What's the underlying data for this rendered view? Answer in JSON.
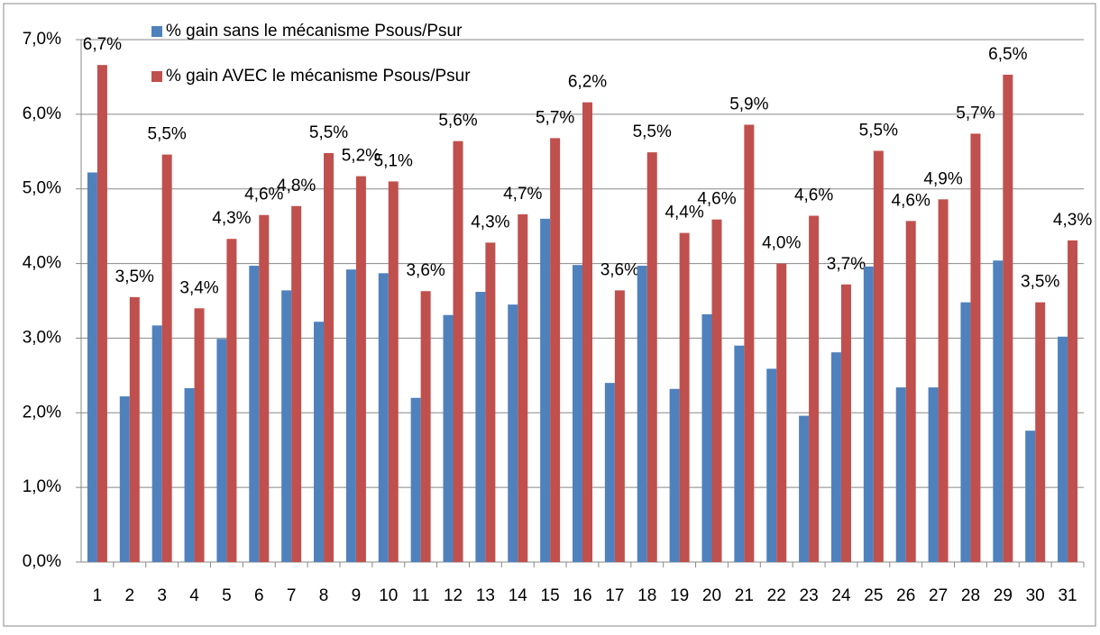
{
  "chart_data": {
    "type": "bar",
    "categories": [
      "1",
      "2",
      "3",
      "4",
      "5",
      "6",
      "7",
      "8",
      "9",
      "10",
      "11",
      "12",
      "13",
      "14",
      "15",
      "16",
      "17",
      "18",
      "19",
      "20",
      "21",
      "22",
      "23",
      "24",
      "25",
      "26",
      "27",
      "28",
      "29",
      "30",
      "31"
    ],
    "series": [
      {
        "name": "% gain sans le mécanisme Psous/Psur",
        "color": "#4f81bd",
        "values": [
          5.22,
          2.22,
          3.17,
          2.33,
          2.99,
          3.97,
          3.64,
          3.22,
          3.92,
          3.87,
          2.2,
          3.31,
          3.62,
          3.45,
          4.6,
          3.98,
          2.4,
          3.97,
          2.32,
          3.32,
          2.9,
          2.59,
          1.96,
          2.81,
          3.96,
          2.34,
          2.34,
          3.48,
          4.04,
          1.76,
          3.02
        ]
      },
      {
        "name": "% gain AVEC le mécanisme Psous/Psur",
        "color": "#c0504d",
        "values": [
          6.66,
          3.55,
          5.46,
          3.4,
          4.33,
          4.65,
          4.77,
          5.48,
          5.17,
          5.1,
          3.63,
          5.64,
          4.28,
          4.66,
          5.68,
          6.16,
          3.64,
          5.49,
          4.41,
          4.59,
          5.86,
          4.0,
          4.64,
          3.72,
          5.51,
          4.57,
          4.86,
          5.74,
          6.53,
          3.48,
          4.31
        ],
        "value_labels": [
          "6,7%",
          "3,5%",
          "5,5%",
          "3,4%",
          "4,3%",
          "4,6%",
          "4,8%",
          "5,5%",
          "5,2%",
          "5,1%",
          "3,6%",
          "5,6%",
          "4,3%",
          "4,7%",
          "5,7%",
          "6,2%",
          "3,6%",
          "5,5%",
          "4,4%",
          "4,6%",
          "5,9%",
          "4,0%",
          "4,6%",
          "3,7%",
          "5,5%",
          "4,6%",
          "4,9%",
          "5,7%",
          "6,5%",
          "3,5%",
          "4,3%"
        ]
      }
    ],
    "ylim": [
      0,
      7
    ],
    "yticks": [
      {
        "value": 0,
        "label": "0,0%"
      },
      {
        "value": 1,
        "label": "1,0%"
      },
      {
        "value": 2,
        "label": "2,0%"
      },
      {
        "value": 3,
        "label": "3,0%"
      },
      {
        "value": 4,
        "label": "4,0%"
      },
      {
        "value": 5,
        "label": "5,0%"
      },
      {
        "value": 6,
        "label": "6,0%"
      },
      {
        "value": 7,
        "label": "7,0%"
      }
    ],
    "grid": true
  }
}
